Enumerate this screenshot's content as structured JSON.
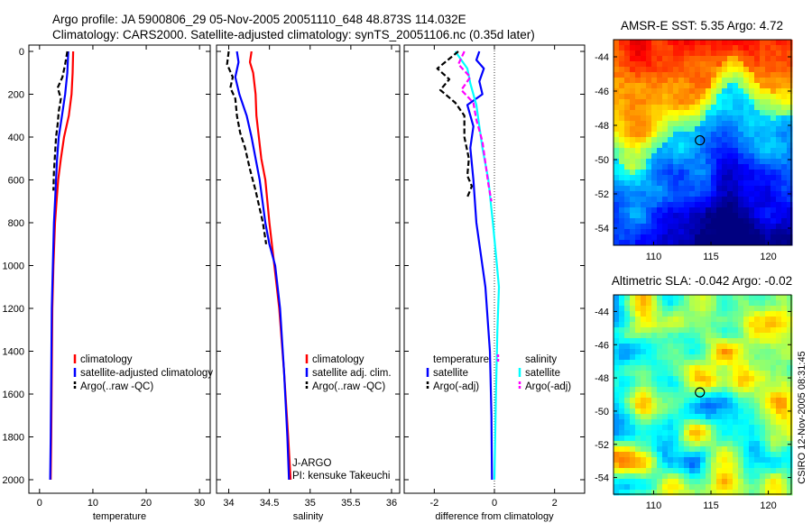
{
  "header": {
    "title_line1": "Argo profile: JA 5900806_29 05-Nov-2005 20051110_648 48.873S 114.032E",
    "title_line2": "Climatology: CARS2000. Satellite-adjusted climatology: synTS_20051106.nc (0.35d later)"
  },
  "colors": {
    "climatology": "#ff0000",
    "satellite": "#0000ff",
    "argo": "#000000",
    "sat_salinity": "#00ffff",
    "argo_salinity": "#ff00ff"
  },
  "chart_data": [
    {
      "id": "temperature",
      "type": "line",
      "xlabel": "temperature",
      "ylabel": "",
      "xlim": [
        -2,
        32
      ],
      "ylim": [
        2050,
        0
      ],
      "xticks": [
        0,
        10,
        20,
        30
      ],
      "xtick_labels": [
        "0",
        "10",
        "20",
        "30"
      ],
      "yticks": [
        0,
        200,
        400,
        600,
        800,
        1000,
        1200,
        1400,
        1600,
        1800,
        2000
      ],
      "ytick_labels": [
        "0",
        "200",
        "400",
        "600",
        "800",
        "1000",
        "1200",
        "1400",
        "1600",
        "1800",
        "2000"
      ],
      "legend": [
        "climatology",
        "satellite-adjusted climatology",
        "Argo(..raw -QC)"
      ],
      "series": [
        {
          "name": "climatology",
          "color": "#ff0000",
          "dash": "solid",
          "x": [
            6.3,
            6.2,
            6.0,
            5.5,
            4.6,
            4.0,
            3.5,
            3.2,
            2.9,
            2.6,
            2.4,
            2.3,
            2.2,
            2.1
          ],
          "y": [
            0,
            100,
            200,
            300,
            400,
            500,
            600,
            700,
            800,
            1000,
            1200,
            1500,
            1800,
            2000
          ]
        },
        {
          "name": "satellite-adjusted climatology",
          "color": "#0000ff",
          "dash": "solid",
          "x": [
            5.4,
            5.2,
            4.8,
            4.2,
            3.6,
            3.3,
            3.1,
            2.9,
            2.7,
            2.5,
            2.3,
            2.2,
            2.1,
            2.0
          ],
          "y": [
            0,
            100,
            200,
            300,
            400,
            500,
            600,
            700,
            800,
            1000,
            1200,
            1500,
            1800,
            2000
          ]
        },
        {
          "name": "Argo(..raw -QC)",
          "color": "#000000",
          "dash": "dashed",
          "x": [
            5.2,
            4.8,
            4.3,
            3.4,
            4.0,
            3.6,
            3.4,
            3.1,
            2.9,
            2.7,
            2.6
          ],
          "y": [
            0,
            60,
            120,
            170,
            220,
            280,
            340,
            400,
            480,
            560,
            650
          ]
        }
      ]
    },
    {
      "id": "salinity",
      "type": "line",
      "xlabel": "salinity",
      "ylabel": "",
      "xlim": [
        33.85,
        36.1
      ],
      "ylim": [
        2050,
        0
      ],
      "xticks": [
        34,
        34.5,
        35,
        35.5,
        36
      ],
      "xtick_labels": [
        "34",
        "34.5",
        "35",
        "35.5",
        "36"
      ],
      "legend": [
        "climatology",
        "satellite adj. clim.",
        "Argo(..raw -QC)"
      ],
      "annotations": [
        "J-ARGO",
        "PI: kensuke Takeuchi"
      ],
      "series": [
        {
          "name": "climatology",
          "color": "#ff0000",
          "dash": "solid",
          "x": [
            34.28,
            34.26,
            34.3,
            34.33,
            34.34,
            34.37,
            34.4,
            34.45,
            34.5,
            34.56,
            34.62,
            34.68,
            34.73,
            34.76
          ],
          "y": [
            0,
            50,
            100,
            200,
            300,
            400,
            500,
            600,
            800,
            1000,
            1200,
            1500,
            1800,
            2000
          ]
        },
        {
          "name": "satellite adj. clim.",
          "color": "#0000ff",
          "dash": "solid",
          "x": [
            34.1,
            34.12,
            34.08,
            34.13,
            34.22,
            34.28,
            34.33,
            34.38,
            34.45,
            34.5,
            34.57,
            34.63,
            34.68,
            34.72,
            34.74
          ],
          "y": [
            0,
            50,
            120,
            200,
            300,
            400,
            500,
            600,
            800,
            900,
            1000,
            1200,
            1500,
            1800,
            2000
          ]
        },
        {
          "name": "Argo(..raw -QC)",
          "color": "#000000",
          "dash": "dashed",
          "x": [
            34.0,
            33.98,
            34.05,
            34.02,
            34.08,
            34.1,
            34.14,
            34.2,
            34.26,
            34.33,
            34.42,
            34.46
          ],
          "y": [
            0,
            60,
            120,
            170,
            220,
            300,
            380,
            450,
            550,
            650,
            800,
            900
          ]
        }
      ]
    },
    {
      "id": "difference",
      "type": "line",
      "xlabel": "difference from climatology",
      "ylabel": "",
      "xlim": [
        -3,
        3
      ],
      "ylim": [
        2050,
        0
      ],
      "xticks": [
        -2,
        0,
        2
      ],
      "xtick_labels": [
        "-2",
        "0",
        "2"
      ],
      "legend_left": [
        "temperature",
        "satellite",
        "Argo(-adj)"
      ],
      "legend_right": [
        "salinity",
        "satellite",
        "Argo(-adj)"
      ],
      "series": [
        {
          "name": "temperature satellite",
          "color": "#0000ff",
          "dash": "solid",
          "x": [
            -0.5,
            -0.6,
            -0.35,
            -0.5,
            -0.4,
            -0.9,
            -0.7,
            -0.8,
            -0.7,
            -0.6,
            -0.45,
            -0.3,
            -0.15,
            -0.1,
            -0.08
          ],
          "y": [
            0,
            40,
            80,
            140,
            200,
            250,
            350,
            450,
            600,
            800,
            950,
            1100,
            1400,
            1700,
            2000
          ]
        },
        {
          "name": "salinity satellite",
          "color": "#00ffff",
          "dash": "solid",
          "x": [
            -1.3,
            -1.1,
            -0.9,
            -0.8,
            -0.6,
            -0.5,
            -0.4,
            -0.2,
            -0.05,
            0.05,
            0.15,
            0.1,
            0.05,
            0.0
          ],
          "y": [
            0,
            40,
            80,
            150,
            250,
            350,
            450,
            600,
            800,
            950,
            1100,
            1300,
            1600,
            2000
          ]
        },
        {
          "name": "temperature Argo(-adj)",
          "color": "#000000",
          "dash": "dashed",
          "x": [
            -1.2,
            -1.9,
            -1.5,
            -1.8,
            -1.3,
            -1.0,
            -1.0,
            -0.85,
            -0.9,
            -0.75,
            -0.9
          ],
          "y": [
            0,
            80,
            130,
            180,
            240,
            300,
            400,
            500,
            580,
            630,
            680
          ]
        },
        {
          "name": "salinity Argo(-adj)",
          "color": "#ff00ff",
          "dash": "dashed",
          "x": [
            -1.0,
            -1.2,
            -0.8,
            -1.1,
            -0.7,
            -0.6,
            -0.4,
            -0.3,
            -0.2,
            -0.1
          ],
          "y": [
            0,
            60,
            120,
            180,
            240,
            320,
            420,
            520,
            620,
            700
          ]
        }
      ]
    },
    {
      "id": "sst_map",
      "type": "heatmap",
      "title": "AMSR-E SST: 5.35 Argo: 4.72",
      "xlim": [
        106.5,
        122
      ],
      "ylim": [
        -55,
        -43
      ],
      "xticks": [
        110,
        115,
        120
      ],
      "xtick_labels": [
        "110",
        "115",
        "120"
      ],
      "yticks": [
        -44,
        -46,
        -48,
        -50,
        -52,
        -54
      ],
      "ytick_labels": [
        "-44",
        "-46",
        "-48",
        "-50",
        "-52",
        "-54"
      ],
      "marker": {
        "lon": 114.032,
        "lat": -48.873
      }
    },
    {
      "id": "sla_map",
      "type": "heatmap",
      "title": "Altimetric SLA: -0.042 Argo: -0.02",
      "xlim": [
        106.5,
        122
      ],
      "ylim": [
        -55,
        -43
      ],
      "xticks": [
        110,
        115,
        120
      ],
      "xtick_labels": [
        "110",
        "115",
        "120"
      ],
      "yticks": [
        -44,
        -46,
        -48,
        -50,
        -52,
        -54
      ],
      "ytick_labels": [
        "-44",
        "-46",
        "-48",
        "-50",
        "-52",
        "-54"
      ],
      "marker": {
        "lon": 114.032,
        "lat": -48.873
      }
    }
  ],
  "footer": {
    "stamp": "CSIRO 12-Nov-2005 08:31:45"
  }
}
